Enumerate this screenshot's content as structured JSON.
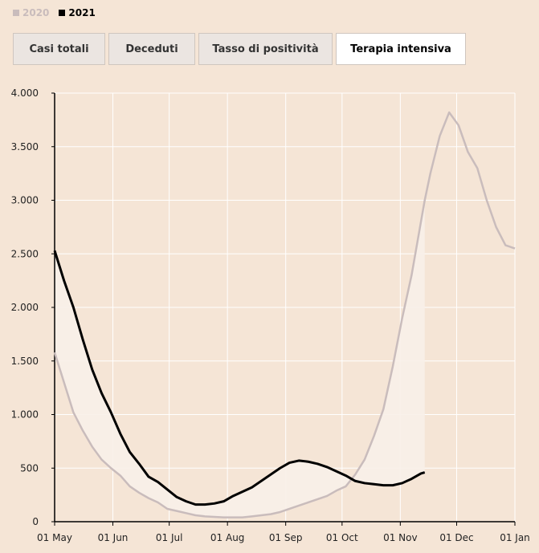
{
  "tabs": [
    "Casi totali",
    "Deceduti",
    "Tasso di positività",
    "Terapia intensiva"
  ],
  "active_tab": 3,
  "chart_data": {
    "type": "line",
    "x": [
      0,
      5,
      10,
      15,
      20,
      25,
      30,
      35,
      40,
      45,
      50,
      55,
      60,
      65,
      70,
      75,
      80,
      85,
      90,
      95,
      100,
      105,
      110,
      115,
      120,
      125,
      130,
      135,
      140,
      145,
      150,
      155,
      160,
      165,
      170,
      175,
      180,
      185,
      190,
      195,
      197,
      200,
      205,
      210,
      215,
      220,
      225,
      230,
      235,
      240,
      245
    ],
    "series": [
      {
        "name": "2020",
        "color": "#c9bcbc",
        "values": [
          1580,
          1300,
          1020,
          850,
          700,
          580,
          500,
          430,
          330,
          270,
          220,
          180,
          120,
          100,
          80,
          60,
          50,
          45,
          40,
          40,
          40,
          50,
          60,
          70,
          90,
          120,
          150,
          180,
          210,
          240,
          290,
          330,
          440,
          580,
          800,
          1050,
          1450,
          1900,
          2300,
          2800,
          3000,
          3250,
          3600,
          3820,
          3700,
          3450,
          3300,
          3000,
          2750,
          2580,
          2550
        ]
      },
      {
        "name": "2021",
        "color": "#000000",
        "values": [
          2530,
          2250,
          2000,
          1700,
          1420,
          1200,
          1020,
          820,
          650,
          540,
          420,
          370,
          300,
          230,
          190,
          160,
          160,
          170,
          190,
          240,
          280,
          320,
          380,
          440,
          500,
          550,
          570,
          560,
          540,
          510,
          470,
          430,
          380,
          360,
          350,
          340,
          340,
          360,
          400,
          450,
          460,
          null,
          null,
          null,
          null,
          null,
          null,
          null,
          null,
          null,
          null
        ]
      }
    ],
    "xlim": [
      0,
      245
    ],
    "xticks": [
      {
        "value": 0,
        "label": "01 May"
      },
      {
        "value": 31,
        "label": "01 Jun"
      },
      {
        "value": 61,
        "label": "01 Jul"
      },
      {
        "value": 92,
        "label": "01 Aug"
      },
      {
        "value": 123,
        "label": "01 Sep"
      },
      {
        "value": 153,
        "label": "01 Oct"
      },
      {
        "value": 184,
        "label": "01 Nov"
      },
      {
        "value": 214,
        "label": "01 Dec"
      },
      {
        "value": 245,
        "label": "01 Jan"
      }
    ],
    "ylim": [
      0,
      4000
    ],
    "yticks": [
      0,
      500,
      {
        "value": 1000,
        "label": "1.000"
      },
      {
        "value": 1500,
        "label": "1.500"
      },
      {
        "value": 2000,
        "label": "2.000"
      },
      {
        "value": 2500,
        "label": "2.500"
      },
      {
        "value": 3000,
        "label": "3.000"
      },
      {
        "value": 3500,
        "label": "3.500"
      },
      {
        "value": 4000,
        "label": "4.000"
      }
    ],
    "grid": true,
    "fill_between": true
  }
}
